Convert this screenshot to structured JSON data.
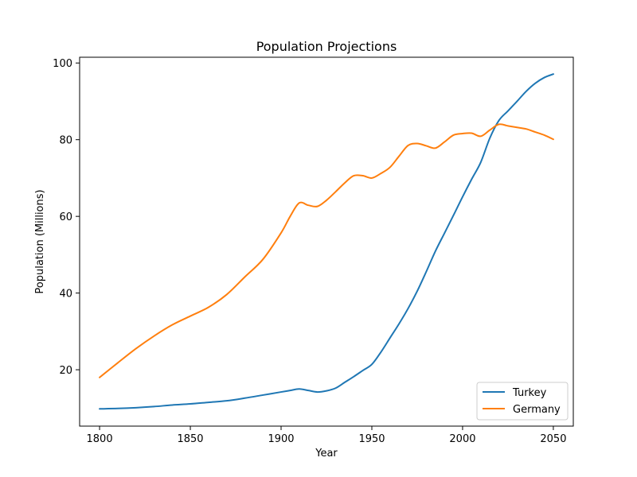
{
  "chart_data": {
    "type": "line",
    "title": "Population Projections",
    "xlabel": "Year",
    "ylabel": "Population (Millions)",
    "xlim": [
      1789,
      2061
    ],
    "ylim": [
      5.3,
      101.5
    ],
    "xticks": [
      1800,
      1850,
      1900,
      1950,
      2000,
      2050
    ],
    "yticks": [
      20,
      40,
      60,
      80,
      100
    ],
    "grid": false,
    "legend_position": "lower-right",
    "x": [
      1800,
      1810,
      1820,
      1830,
      1840,
      1850,
      1860,
      1870,
      1880,
      1890,
      1900,
      1905,
      1910,
      1915,
      1920,
      1925,
      1930,
      1935,
      1940,
      1945,
      1950,
      1955,
      1960,
      1965,
      1970,
      1975,
      1980,
      1985,
      1990,
      1995,
      2000,
      2005,
      2010,
      2015,
      2020,
      2025,
      2030,
      2035,
      2040,
      2045,
      2050
    ],
    "series": [
      {
        "name": "Turkey",
        "color": "#1f77b4",
        "values": [
          9.8,
          9.9,
          10.1,
          10.4,
          10.8,
          11.1,
          11.5,
          11.9,
          12.6,
          13.4,
          14.2,
          14.6,
          15.0,
          14.6,
          14.2,
          14.5,
          15.2,
          16.7,
          18.2,
          19.8,
          21.4,
          24.6,
          28.3,
          32.0,
          36.0,
          40.5,
          45.6,
          50.9,
          55.6,
          60.3,
          65.1,
          69.7,
          74.1,
          80.4,
          85.0,
          87.5,
          90.0,
          92.6,
          94.7,
          96.2,
          97.1
        ]
      },
      {
        "name": "Germany",
        "color": "#ff7f0e",
        "values": [
          18.0,
          21.8,
          25.5,
          28.8,
          31.7,
          34.0,
          36.3,
          39.6,
          44.2,
          48.8,
          55.7,
          60.0,
          63.5,
          62.9,
          62.6,
          64.2,
          66.4,
          68.7,
          70.6,
          70.6,
          70.0,
          71.2,
          72.8,
          75.7,
          78.5,
          79.0,
          78.4,
          77.8,
          79.4,
          81.2,
          81.6,
          81.7,
          80.9,
          82.5,
          84.0,
          83.6,
          83.2,
          82.8,
          82.0,
          81.2,
          80.1
        ]
      }
    ]
  }
}
